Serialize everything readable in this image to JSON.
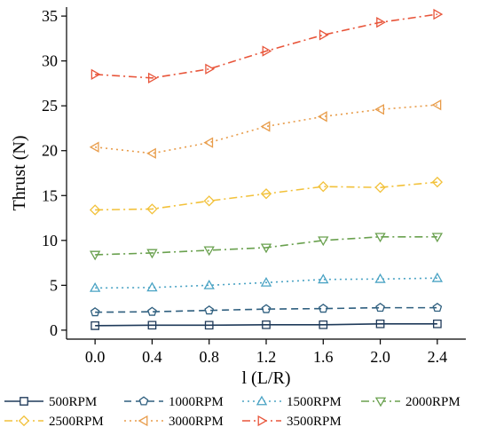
{
  "chart_data": {
    "type": "line",
    "xlabel": "l (L/R)",
    "ylabel": "Thrust (N)",
    "xlim": [
      -0.2,
      2.6
    ],
    "ylim": [
      -1,
      36
    ],
    "x_ticks": [
      "0.0",
      "0.4",
      "0.8",
      "1.2",
      "1.6",
      "2.0",
      "2.4"
    ],
    "y_ticks": [
      "0",
      "5",
      "10",
      "15",
      "20",
      "25",
      "30",
      "35"
    ],
    "x": [
      0.0,
      0.4,
      0.8,
      1.2,
      1.6,
      2.0,
      2.4
    ],
    "grid": false,
    "legend_position": "bottom",
    "series": [
      {
        "name": "500RPM",
        "color": "#1f3a5a",
        "marker": "square",
        "dash": "solid",
        "values": [
          0.5,
          0.55,
          0.55,
          0.6,
          0.6,
          0.7,
          0.7
        ]
      },
      {
        "name": "1000RPM",
        "color": "#2f5f7f",
        "marker": "pentagon",
        "dash": "dash",
        "values": [
          2.0,
          2.05,
          2.2,
          2.35,
          2.4,
          2.5,
          2.5
        ]
      },
      {
        "name": "1500RPM",
        "color": "#4aa3c4",
        "marker": "triangle-up",
        "dash": "dot",
        "values": [
          4.7,
          4.75,
          5.0,
          5.3,
          5.65,
          5.7,
          5.8
        ]
      },
      {
        "name": "2000RPM",
        "color": "#6aa14f",
        "marker": "triangle-down",
        "dash": "dashdot",
        "values": [
          8.4,
          8.6,
          8.9,
          9.2,
          10.0,
          10.4,
          10.4
        ]
      },
      {
        "name": "2500RPM",
        "color": "#f2c13a",
        "marker": "diamond",
        "dash": "dashdot",
        "values": [
          13.4,
          13.5,
          14.4,
          15.2,
          16.0,
          15.9,
          16.5
        ]
      },
      {
        "name": "3000RPM",
        "color": "#e89c4a",
        "marker": "triangle-left",
        "dash": "dot",
        "values": [
          20.4,
          19.7,
          20.9,
          22.7,
          23.8,
          24.6,
          25.1
        ]
      },
      {
        "name": "3500RPM",
        "color": "#e8553a",
        "marker": "triangle-right",
        "dash": "dashdot",
        "values": [
          28.5,
          28.1,
          29.1,
          31.1,
          32.9,
          34.3,
          35.2
        ]
      }
    ]
  }
}
